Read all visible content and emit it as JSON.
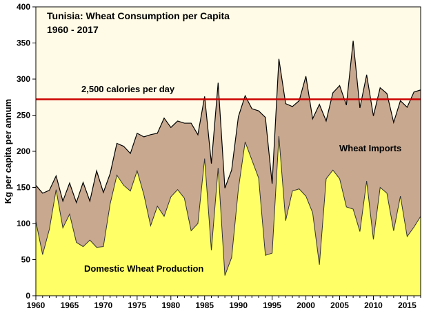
{
  "chart_data": {
    "type": "area",
    "title": "Tunisia:  Wheat Consumption  per Capita",
    "subtitle": "1960 - 2017",
    "ylabel": "Kg per capita per annum",
    "xlabel": "",
    "xlim": [
      1960,
      2017
    ],
    "ylim": [
      0,
      400
    ],
    "x_ticks": [
      1960,
      1965,
      1970,
      1975,
      1980,
      1985,
      1990,
      1995,
      2000,
      2005,
      2010,
      2015
    ],
    "y_ticks": [
      0,
      50,
      100,
      150,
      200,
      250,
      300,
      350,
      400
    ],
    "grid": false,
    "x": [
      1960,
      1961,
      1962,
      1963,
      1964,
      1965,
      1966,
      1967,
      1968,
      1969,
      1970,
      1971,
      1972,
      1973,
      1974,
      1975,
      1976,
      1977,
      1978,
      1979,
      1980,
      1981,
      1982,
      1983,
      1984,
      1985,
      1986,
      1987,
      1988,
      1989,
      1990,
      1991,
      1992,
      1993,
      1994,
      1995,
      1996,
      1997,
      1998,
      1999,
      2000,
      2001,
      2002,
      2003,
      2004,
      2005,
      2006,
      2007,
      2008,
      2009,
      2010,
      2011,
      2012,
      2013,
      2014,
      2015,
      2016,
      2017
    ],
    "series": [
      {
        "name": "Domestic Wheat Production",
        "color": "#ffff66",
        "values": [
          103,
          57,
          92,
          147,
          94,
          113,
          74,
          68,
          77,
          67,
          68,
          127,
          167,
          153,
          145,
          173,
          140,
          97,
          124,
          110,
          137,
          147,
          135,
          90,
          100,
          190,
          63,
          177,
          28,
          53,
          148,
          213,
          188,
          163,
          56,
          59,
          221,
          104,
          145,
          148,
          138,
          115,
          43,
          162,
          174,
          162,
          123,
          120,
          89,
          159,
          78,
          150,
          142,
          90,
          138,
          82,
          95,
          110
        ]
      },
      {
        "name": "Wheat Imports",
        "color": "#c8a990",
        "values": [
          50,
          85,
          54,
          19,
          37,
          43,
          55,
          89,
          54,
          106,
          75,
          42,
          44,
          54,
          52,
          52,
          80,
          126,
          101,
          136,
          96,
          95,
          104,
          149,
          123,
          86,
          120,
          118,
          121,
          121,
          100,
          64,
          71,
          93,
          191,
          96,
          107,
          162,
          117,
          122,
          166,
          130,
          222,
          80,
          107,
          129,
          141,
          233,
          171,
          147,
          171,
          138,
          138,
          150,
          132,
          179,
          187,
          175
        ]
      }
    ],
    "reference_line": {
      "value": 272,
      "label": "2,500 calories per day",
      "color": "#cc0000"
    },
    "annotations": [
      "Wheat Imports",
      "Domestic Wheat Production"
    ],
    "colors": {
      "background": "#fffbe6",
      "total_line": "#000000"
    }
  }
}
